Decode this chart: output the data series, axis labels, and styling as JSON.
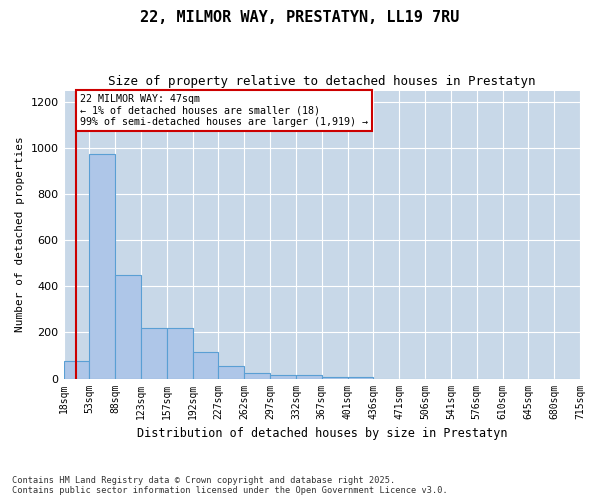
{
  "title": "22, MILMOR WAY, PRESTATYN, LL19 7RU",
  "subtitle": "Size of property relative to detached houses in Prestatyn",
  "xlabel": "Distribution of detached houses by size in Prestatyn",
  "ylabel": "Number of detached properties",
  "footer_line1": "Contains HM Land Registry data © Crown copyright and database right 2025.",
  "footer_line2": "Contains public sector information licensed under the Open Government Licence v3.0.",
  "annotation_title": "22 MILMOR WAY: 47sqm",
  "annotation_line2": "← 1% of detached houses are smaller (18)",
  "annotation_line3": "99% of semi-detached houses are larger (1,919) →",
  "bar_color": "#aec6e8",
  "bar_edge_color": "#5a9fd4",
  "vline_color": "#cc0000",
  "annotation_box_color": "#cc0000",
  "background_color": "#ffffff",
  "grid_color": "#c8d8e8",
  "bin_labels": [
    "18sqm",
    "53sqm",
    "88sqm",
    "123sqm",
    "157sqm",
    "192sqm",
    "227sqm",
    "262sqm",
    "297sqm",
    "332sqm",
    "367sqm",
    "401sqm",
    "436sqm",
    "471sqm",
    "506sqm",
    "541sqm",
    "576sqm",
    "610sqm",
    "645sqm",
    "680sqm",
    "715sqm"
  ],
  "bar_values": [
    75,
    975,
    450,
    220,
    220,
    115,
    55,
    25,
    15,
    15,
    5,
    5,
    0,
    0,
    0,
    0,
    0,
    0,
    0,
    0
  ],
  "ylim": [
    0,
    1250
  ],
  "yticks": [
    0,
    200,
    400,
    600,
    800,
    1000,
    1200
  ],
  "figsize": [
    6.0,
    5.0
  ],
  "dpi": 100,
  "vline_position": 0.5
}
